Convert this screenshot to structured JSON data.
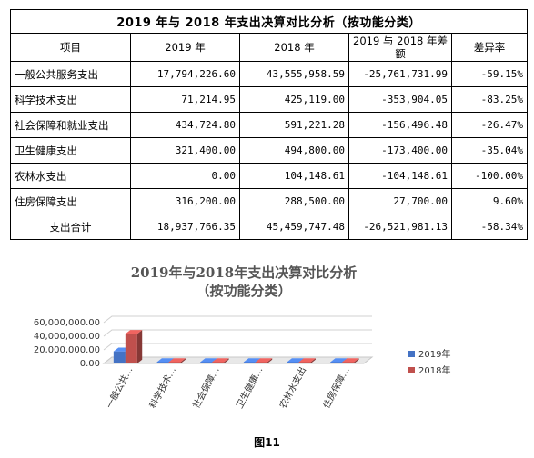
{
  "table": {
    "title": "2019 年与 2018 年支出决算对比分析（按功能分类）",
    "headers": [
      "项目",
      "2019 年",
      "2018 年",
      "2019 与 2018 年差额",
      "差异率"
    ],
    "rows": [
      [
        "一般公共服务支出",
        "17,794,226.60",
        "43,555,958.59",
        "-25,761,731.99",
        "-59.15%"
      ],
      [
        "科学技术支出",
        "71,214.95",
        "425,119.00",
        "-353,904.05",
        "-83.25%"
      ],
      [
        "社会保障和就业支出",
        "434,724.80",
        "591,221.28",
        "-156,496.48",
        "-26.47%"
      ],
      [
        "卫生健康支出",
        "321,400.00",
        "494,800.00",
        "-173,400.00",
        "-35.04%"
      ],
      [
        "农林水支出",
        "0.00",
        "104,148.61",
        "-104,148.61",
        "-100.00%"
      ],
      [
        "住房保障支出",
        "316,200.00",
        "288,500.00",
        "27,700.00",
        "9.60%"
      ],
      [
        "支出合计",
        "18,937,766.35",
        "45,459,747.48",
        "-26,521,981.13",
        "-58.34%"
      ]
    ]
  },
  "chart_data": {
    "type": "bar",
    "title_line1": "2019年与2018年支出决算对比分析",
    "title_line2": "（按功能分类）",
    "categories": [
      "一般公共…",
      "科学技术…",
      "社会保障…",
      "卫生健康…",
      "农林水支出",
      "住房保障…"
    ],
    "series": [
      {
        "name": "2019年",
        "color": "#4472c4",
        "values": [
          17794226.6,
          71214.95,
          434724.8,
          321400.0,
          0.0,
          316200.0
        ]
      },
      {
        "name": "2018年",
        "color": "#c0504d",
        "values": [
          43555958.59,
          425119.0,
          591221.28,
          494800.0,
          104148.61,
          288500.0
        ]
      }
    ],
    "yticks": [
      "0.00",
      "20,000,000.00",
      "40,000,000.00",
      "60,000,000.00"
    ],
    "ylim": [
      0,
      60000000
    ],
    "grid": true,
    "legend_position": "right"
  },
  "caption": "图11"
}
